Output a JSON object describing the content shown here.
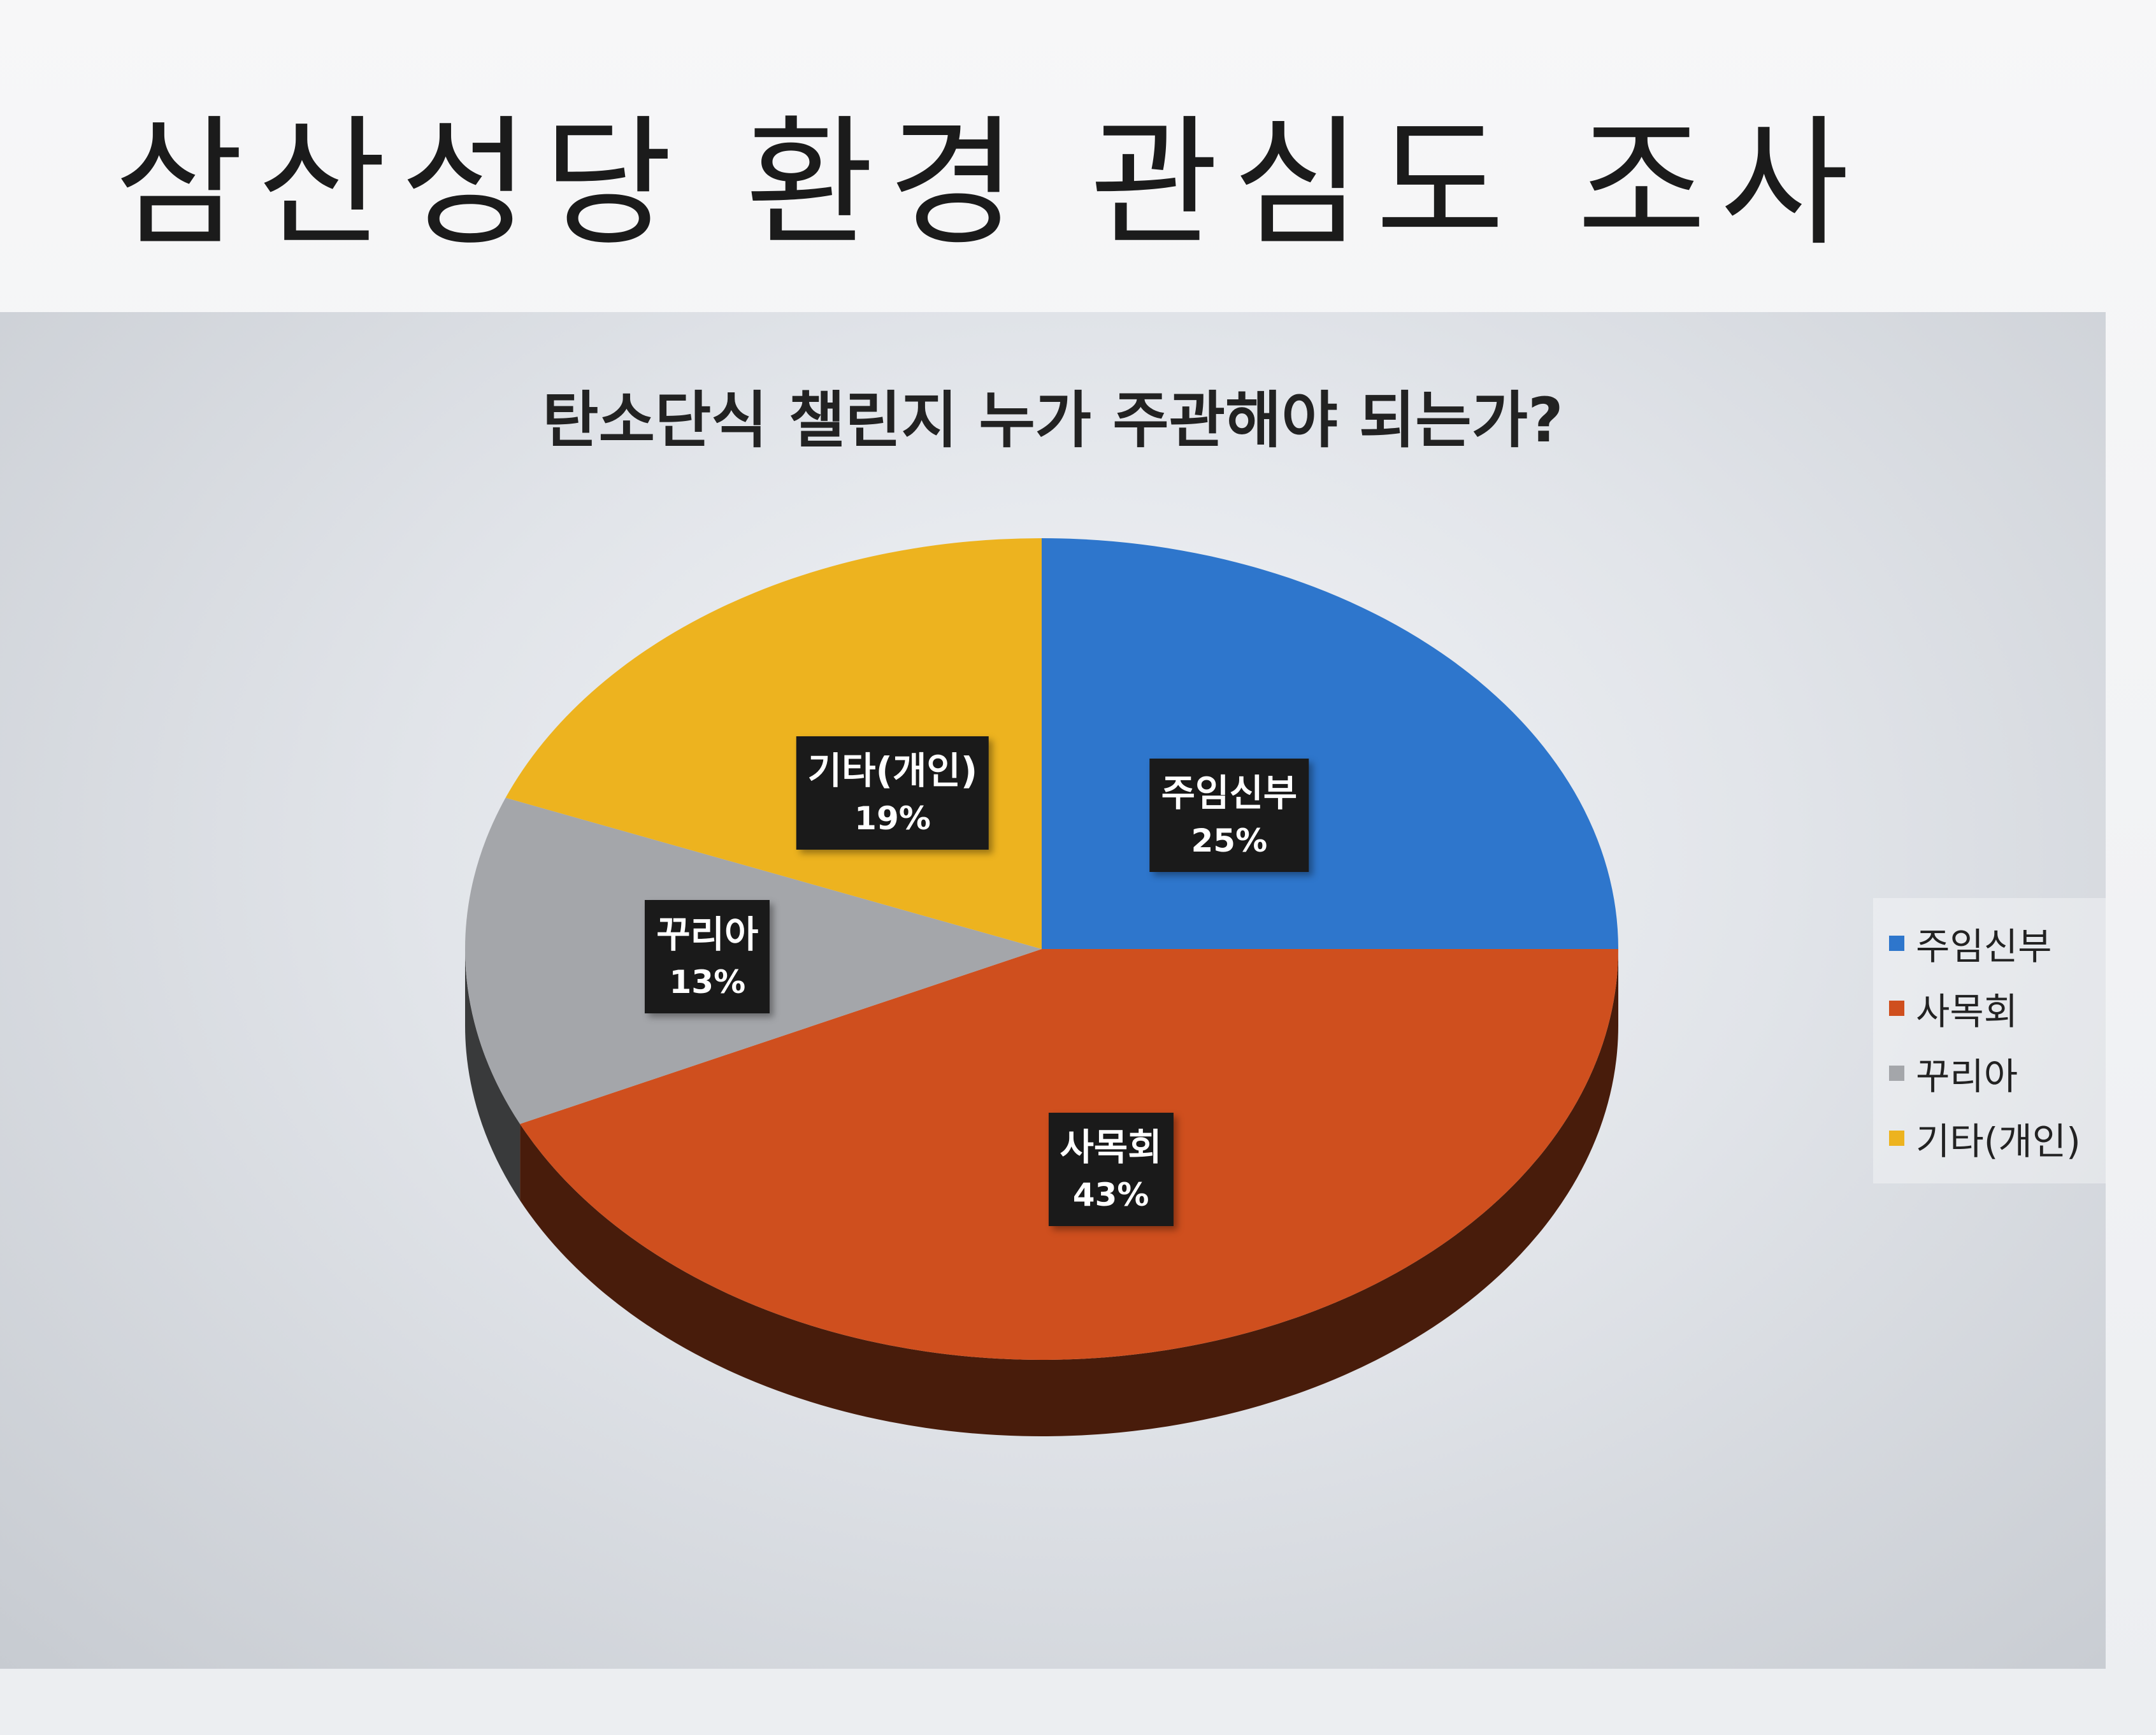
{
  "slide": {
    "title": "삼산성당 환경 관심도 조사"
  },
  "chart_data": {
    "type": "pie",
    "title": "탄소단식 챌린지 누가 주관해야 되는가?",
    "categories": [
      "주임신부",
      "사목회",
      "꾸리아",
      "기타(개인)"
    ],
    "values": [
      25,
      43,
      13,
      19
    ],
    "value_labels": [
      "25%",
      "43%",
      "13%",
      "19%"
    ],
    "colors": [
      "#2e76cc",
      "#cf4f1e",
      "#a4a6aa",
      "#edb31f"
    ],
    "style": "3d",
    "legend": {
      "position": "right",
      "items": [
        "주임신부",
        "사목회",
        "꾸리아",
        "기타(개인)"
      ]
    }
  }
}
